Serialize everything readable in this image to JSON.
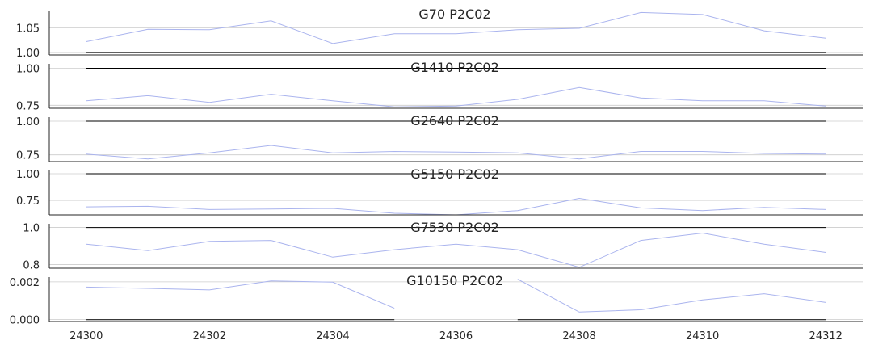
{
  "colors": {
    "background": "#ffffff",
    "grid": "#cccccc",
    "text": "#262626",
    "series_dark": "#000000",
    "series_light": "#aab4ee"
  },
  "chart_data": [
    {
      "type": "line",
      "title": "G70 P2C02",
      "x": [
        24300,
        24301,
        24302,
        24303,
        24304,
        24305,
        24306,
        24307,
        24308,
        24309,
        24310,
        24311,
        24312
      ],
      "xticks": [
        "24300",
        "24302",
        "24304",
        "24306",
        "24308",
        "24310",
        "24312"
      ],
      "ylim": [
        0.995,
        1.085
      ],
      "yticks": [
        "1.00",
        "1.05"
      ],
      "grid": true,
      "series": [
        {
          "color": "#aab4ee",
          "values": [
            1.022,
            1.047,
            1.046,
            1.064,
            1.018,
            1.038,
            1.038,
            1.046,
            1.049,
            1.081,
            1.077,
            1.044,
            1.029
          ]
        },
        {
          "color": "#000000",
          "values": [
            1.0,
            1.0,
            1.0,
            1.0,
            1.0,
            1.0,
            1.0,
            1.0,
            1.0,
            1.0,
            1.0,
            1.0,
            1.0
          ]
        }
      ]
    },
    {
      "type": "line",
      "title": "G1410 P2C02",
      "x": [
        24300,
        24301,
        24302,
        24303,
        24304,
        24305,
        24306,
        24307,
        24308,
        24309,
        24310,
        24311,
        24312
      ],
      "xticks": [
        "24300",
        "24302",
        "24304",
        "24306",
        "24308",
        "24310",
        "24312"
      ],
      "ylim": [
        0.73,
        1.03
      ],
      "yticks": [
        "0.75",
        "1.00"
      ],
      "grid": true,
      "series": [
        {
          "color": "#aab4ee",
          "values": [
            0.78,
            0.815,
            0.77,
            0.825,
            0.78,
            0.74,
            0.745,
            0.79,
            0.87,
            0.8,
            0.78,
            0.78,
            0.745
          ]
        },
        {
          "color": "#000000",
          "values": [
            1.0,
            1.0,
            1.0,
            1.0,
            1.0,
            1.0,
            1.0,
            1.0,
            1.0,
            1.0,
            1.0,
            1.0,
            1.0
          ]
        }
      ]
    },
    {
      "type": "line",
      "title": "G2640 P2C02",
      "x": [
        24300,
        24301,
        24302,
        24303,
        24304,
        24305,
        24306,
        24307,
        24308,
        24309,
        24310,
        24311,
        24312
      ],
      "xticks": [
        "24300",
        "24302",
        "24304",
        "24306",
        "24308",
        "24310",
        "24312"
      ],
      "ylim": [
        0.7,
        1.03
      ],
      "yticks": [
        "0.75",
        "1.00"
      ],
      "grid": true,
      "series": [
        {
          "color": "#aab4ee",
          "values": [
            0.755,
            0.72,
            0.765,
            0.82,
            0.765,
            0.775,
            0.77,
            0.765,
            0.72,
            0.775,
            0.775,
            0.76,
            0.755
          ]
        },
        {
          "color": "#000000",
          "values": [
            1.0,
            1.0,
            1.0,
            1.0,
            1.0,
            1.0,
            1.0,
            1.0,
            1.0,
            1.0,
            1.0,
            1.0,
            1.0
          ]
        }
      ]
    },
    {
      "type": "line",
      "title": "G5150 P2C02",
      "x": [
        24300,
        24301,
        24302,
        24303,
        24304,
        24305,
        24306,
        24307,
        24308,
        24309,
        24310,
        24311,
        24312
      ],
      "xticks": [
        "24300",
        "24302",
        "24304",
        "24306",
        "24308",
        "24310",
        "24312"
      ],
      "ylim": [
        0.615,
        1.03
      ],
      "yticks": [
        "0.75",
        "1.00"
      ],
      "grid": true,
      "series": [
        {
          "color": "#aab4ee",
          "values": [
            0.69,
            0.695,
            0.665,
            0.67,
            0.675,
            0.63,
            0.615,
            0.655,
            0.77,
            0.68,
            0.655,
            0.685,
            0.665
          ]
        },
        {
          "color": "#000000",
          "values": [
            1.0,
            1.0,
            1.0,
            1.0,
            1.0,
            1.0,
            1.0,
            1.0,
            1.0,
            1.0,
            1.0,
            1.0,
            1.0
          ]
        }
      ]
    },
    {
      "type": "line",
      "title": "G7530 P2C02",
      "x": [
        24300,
        24301,
        24302,
        24303,
        24304,
        24305,
        24306,
        24307,
        24308,
        24309,
        24310,
        24311,
        24312
      ],
      "xticks": [
        "24300",
        "24302",
        "24304",
        "24306",
        "24308",
        "24310",
        "24312"
      ],
      "ylim": [
        0.78,
        1.02
      ],
      "yticks": [
        "0.8",
        "1.0"
      ],
      "grid": true,
      "series": [
        {
          "color": "#aab4ee",
          "values": [
            0.91,
            0.875,
            0.925,
            0.93,
            0.84,
            0.88,
            0.91,
            0.88,
            0.785,
            0.93,
            0.97,
            0.91,
            0.865
          ]
        },
        {
          "color": "#000000",
          "values": [
            1.0,
            1.0,
            1.0,
            1.0,
            1.0,
            1.0,
            1.0,
            1.0,
            1.0,
            1.0,
            1.0,
            1.0,
            1.0
          ]
        }
      ]
    },
    {
      "type": "line",
      "title": "G10150 P2C02",
      "x": [
        24300,
        24301,
        24302,
        24303,
        24304,
        24305,
        24306,
        24307,
        24308,
        24309,
        24310,
        24311,
        24312
      ],
      "xticks": [
        "24300",
        "24302",
        "24304",
        "24306",
        "24308",
        "24310",
        "24312"
      ],
      "ylim": [
        -0.0001,
        0.00225
      ],
      "yticks": [
        "0.000",
        "0.002"
      ],
      "grid": true,
      "series": [
        {
          "color": "#aab4ee",
          "values": [
            0.00172,
            0.00165,
            0.00157,
            0.00205,
            0.00198,
            0.0006,
            null,
            0.00214,
            0.0004,
            0.00052,
            0.00104,
            0.00137,
            0.00091
          ]
        },
        {
          "color": "#000000",
          "values": [
            0.0,
            0.0,
            0.0,
            0.0,
            0.0,
            0.0,
            null,
            0.0,
            0.0,
            0.0,
            0.0,
            0.0,
            0.0
          ]
        }
      ]
    }
  ]
}
